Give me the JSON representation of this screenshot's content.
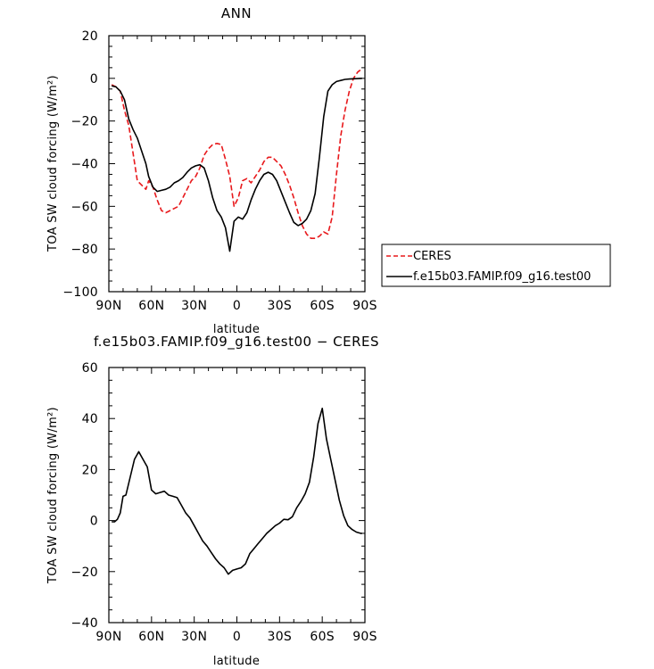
{
  "chart_data": [
    {
      "type": "line",
      "title": "ANN",
      "xlabel": "latitude",
      "ylabel": "TOA SW cloud forcing (W/m²)",
      "xlim": [
        90,
        -90
      ],
      "ylim": [
        -100,
        20
      ],
      "x_ticks": [
        90,
        60,
        30,
        0,
        -30,
        -60,
        -90
      ],
      "x_tick_labels": [
        "90N",
        "60N",
        "30N",
        "0",
        "30S",
        "60S",
        "90S"
      ],
      "y_ticks": [
        20,
        0,
        -20,
        -40,
        -60,
        -80,
        -100
      ],
      "y_tick_labels": [
        "20",
        "0",
        "−20",
        "−40",
        "−60",
        "−80",
        "−100"
      ],
      "legend": "right",
      "grid": false,
      "series": [
        {
          "name": "CERES",
          "color": "#e8191c",
          "style": "dashed",
          "x": [
            88,
            85,
            82,
            79,
            76,
            73,
            70,
            67,
            64,
            62,
            59,
            56,
            53,
            50,
            47,
            44,
            41,
            38,
            35,
            32,
            29,
            26,
            23,
            20,
            17,
            14,
            11,
            8,
            5,
            2,
            -1,
            -4,
            -7,
            -10,
            -13,
            -16,
            -19,
            -22,
            -25,
            -28,
            -31,
            -34,
            -37,
            -40,
            -43,
            -46,
            -49,
            -52,
            -55,
            -58,
            -61,
            -64,
            -67,
            -70,
            -73,
            -76,
            -79,
            -82,
            -85,
            -88
          ],
          "y": [
            -3,
            -4,
            -6,
            -15,
            -22,
            -35,
            -48,
            -50,
            -52,
            -48,
            -51,
            -57,
            -62,
            -63,
            -62,
            -61,
            -60,
            -56,
            -52,
            -48,
            -46,
            -42,
            -36,
            -33,
            -31,
            -30.5,
            -31,
            -38,
            -46,
            -60,
            -56,
            -48,
            -47,
            -49,
            -46,
            -43,
            -39,
            -37,
            -37,
            -39,
            -41,
            -45,
            -50,
            -56,
            -63,
            -69,
            -73,
            -75,
            -75,
            -74,
            -72,
            -73,
            -65,
            -45,
            -27,
            -15,
            -6,
            0,
            3,
            4.5
          ]
        },
        {
          "name": "f.e15b03.FAMIP.f09_g16.test00",
          "color": "#000000",
          "style": "solid",
          "x": [
            88,
            85,
            82,
            79,
            76,
            73,
            70,
            67,
            64,
            62,
            59,
            56,
            53,
            50,
            47,
            44,
            41,
            38,
            35,
            32,
            29,
            26,
            23,
            20,
            17,
            14,
            11,
            8,
            5,
            2,
            -1,
            -4,
            -7,
            -10,
            -13,
            -16,
            -19,
            -22,
            -25,
            -28,
            -31,
            -34,
            -37,
            -40,
            -43,
            -46,
            -49,
            -52,
            -55,
            -58,
            -61,
            -64,
            -67,
            -70,
            -73,
            -76,
            -79,
            -82,
            -85,
            -88
          ],
          "y": [
            -3.5,
            -4,
            -6,
            -10,
            -19,
            -24,
            -28,
            -34,
            -40,
            -46,
            -51,
            -53,
            -52.5,
            -52,
            -51,
            -49,
            -48,
            -46.5,
            -44,
            -42,
            -41,
            -40.5,
            -42,
            -48,
            -56,
            -62,
            -65,
            -70,
            -81,
            -67,
            -65,
            -66,
            -63,
            -57,
            -52,
            -48,
            -45,
            -44,
            -45,
            -48,
            -53,
            -58,
            -63,
            -67.5,
            -69,
            -68,
            -66,
            -62,
            -54,
            -37,
            -18,
            -6,
            -3,
            -1.5,
            -1,
            -0.5,
            -0.3,
            -0.2,
            -0.1,
            0
          ]
        }
      ]
    },
    {
      "type": "line",
      "title": "f.e15b03.FAMIP.f09_g16.test00 − CERES",
      "xlabel": "latitude",
      "ylabel": "TOA SW cloud forcing (W/m²)",
      "xlim": [
        90,
        -90
      ],
      "ylim": [
        -40,
        60
      ],
      "x_ticks": [
        90,
        60,
        30,
        0,
        -30,
        -60,
        -90
      ],
      "x_tick_labels": [
        "90N",
        "60N",
        "30N",
        "0",
        "30S",
        "60S",
        "90S"
      ],
      "y_ticks": [
        60,
        40,
        20,
        0,
        -20,
        -40
      ],
      "y_tick_labels": [
        "60",
        "40",
        "20",
        "0",
        "−20",
        "−40"
      ],
      "grid": false,
      "series": [
        {
          "color": "#000000",
          "style": "solid",
          "x": [
            88,
            86,
            84,
            82,
            80,
            78,
            75,
            72,
            69,
            66,
            63,
            60,
            57,
            54,
            51,
            48,
            45,
            42,
            39,
            36,
            33,
            30,
            27,
            24,
            21,
            18,
            15,
            12,
            9,
            6,
            3,
            0,
            -3,
            -6,
            -9,
            -12,
            -15,
            -18,
            -21,
            -24,
            -27,
            -30,
            -33,
            -36,
            -39,
            -42,
            -45,
            -48,
            -51,
            -54,
            -57,
            -60,
            -63,
            -66,
            -69,
            -72,
            -75,
            -78,
            -81,
            -84,
            -87,
            -88
          ],
          "y": [
            -0.5,
            -0.5,
            0.5,
            3,
            9.5,
            10,
            17,
            24,
            27,
            24,
            21,
            12,
            10.5,
            11,
            11.5,
            10,
            9.5,
            9,
            6,
            3,
            1,
            -2,
            -5,
            -8,
            -10,
            -12.5,
            -15,
            -17,
            -18.5,
            -21,
            -19.5,
            -19,
            -18.5,
            -17,
            -13,
            -11,
            -9,
            -7,
            -5,
            -3.5,
            -2,
            -1,
            0.5,
            0.3,
            1.5,
            5,
            7.5,
            10.5,
            15,
            25,
            38,
            44,
            32,
            24,
            16,
            8,
            2,
            -2,
            -3.5,
            -4.5,
            -5,
            -5
          ]
        }
      ]
    }
  ]
}
